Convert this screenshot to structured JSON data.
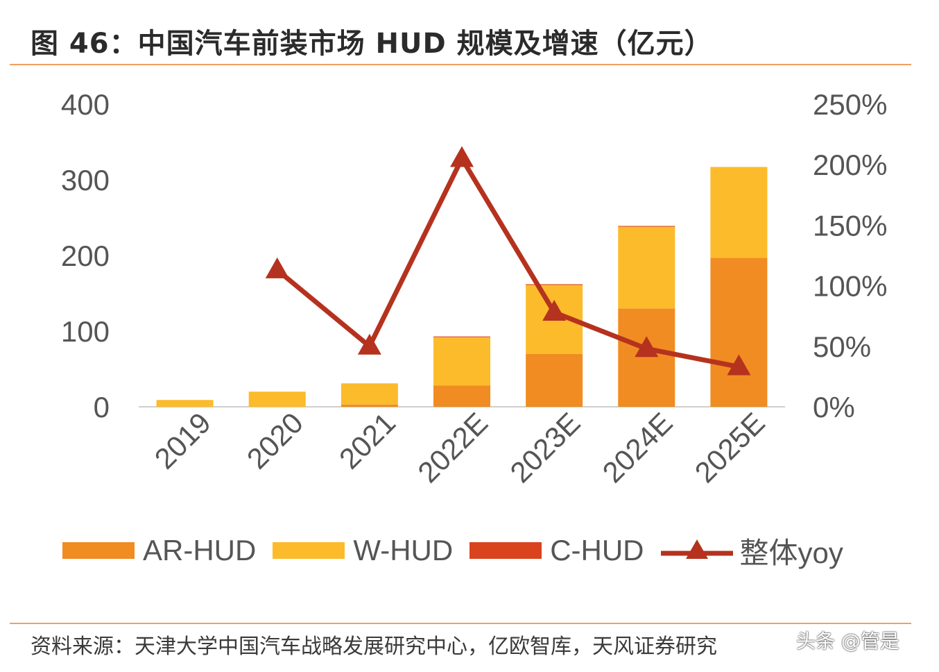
{
  "title": "图 46：中国汽车前装市场 HUD 规模及增速（亿元）",
  "source": "资料来源：天津大学中国汽车战略发展研究中心，亿欧智库，天风证券研究",
  "watermark": "头条 @管是",
  "colors": {
    "ar_hud": "#f08c22",
    "w_hud": "#fcbb2b",
    "c_hud": "#d9441e",
    "yoy": "#b5321e",
    "rule": "#f0a060"
  },
  "chart_data": {
    "type": "bar",
    "stacked": true,
    "categories": [
      "2019",
      "2020",
      "2021",
      "2022E",
      "2023E",
      "2024E",
      "2025E"
    ],
    "series": [
      {
        "name": "AR-HUD",
        "type": "bar",
        "axis": "left",
        "values": [
          0,
          0,
          3,
          28,
          70,
          130,
          197
        ]
      },
      {
        "name": "W-HUD",
        "type": "bar",
        "axis": "left",
        "values": [
          9,
          20,
          28,
          64,
          91,
          108,
          120
        ]
      },
      {
        "name": "C-HUD",
        "type": "bar",
        "axis": "left",
        "values": [
          0,
          0,
          0,
          1,
          1,
          1,
          0
        ]
      },
      {
        "name": "整体yoy",
        "type": "line",
        "axis": "right",
        "marker": "triangle",
        "values": [
          null,
          1.13,
          0.5,
          2.05,
          0.78,
          0.48,
          0.33
        ]
      }
    ],
    "yaxis_left": {
      "ticks": [
        "0",
        "100",
        "200",
        "300",
        "400"
      ],
      "range": [
        0,
        400
      ]
    },
    "yaxis_right": {
      "ticks": [
        "0%",
        "50%",
        "100%",
        "150%",
        "200%",
        "250%"
      ],
      "range": [
        0,
        2.5
      ]
    },
    "grid": false,
    "legend_position": "bottom"
  }
}
